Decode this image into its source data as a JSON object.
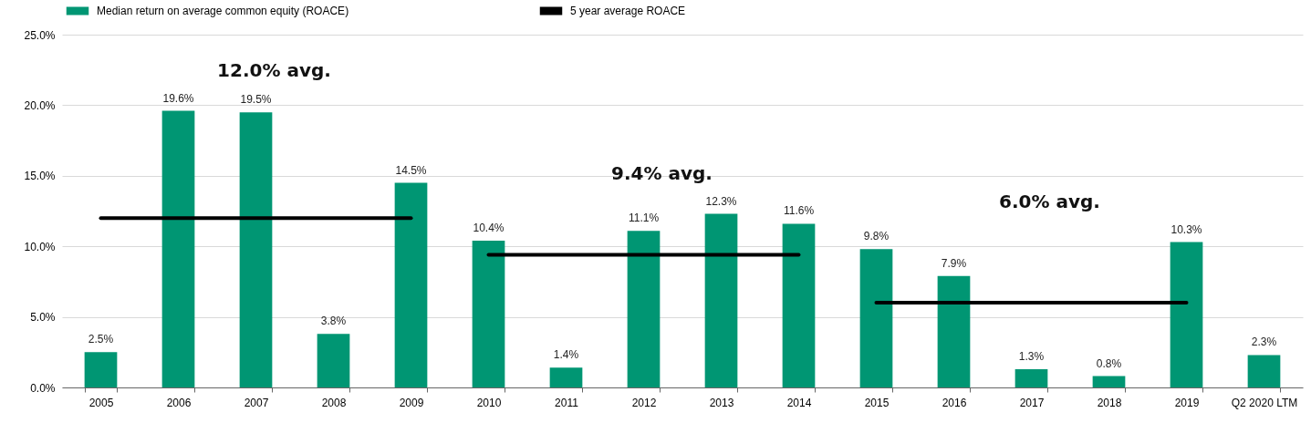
{
  "chart_data": {
    "type": "bar",
    "categories": [
      "2005",
      "2006",
      "2007",
      "2008",
      "2009",
      "2010",
      "2011",
      "2012",
      "2013",
      "2014",
      "2015",
      "2016",
      "2017",
      "2018",
      "2019",
      "Q2 2020 LTM"
    ],
    "series": [
      {
        "name": "Median return on average common equity (ROACE)",
        "color": "#009673",
        "values": [
          2.5,
          19.6,
          19.5,
          3.8,
          14.5,
          10.4,
          1.4,
          11.1,
          12.3,
          11.6,
          9.8,
          7.9,
          1.3,
          0.8,
          10.3,
          2.3
        ],
        "value_labels": [
          "2.5%",
          "19.6%",
          "19.5%",
          "3.8%",
          "14.5%",
          "10.4%",
          "1.4%",
          "11.1%",
          "12.3%",
          "11.6%",
          "9.8%",
          "7.9%",
          "1.3%",
          "0.8%",
          "10.3%",
          "2.3%"
        ]
      },
      {
        "name": "5 year average ROACE",
        "type": "line",
        "color": "#000000",
        "values": [
          12.0,
          12.0,
          12.0,
          12.0,
          12.0,
          null,
          null,
          null,
          null,
          null,
          null,
          null,
          null,
          null,
          null,
          null
        ]
      },
      {
        "type": "line",
        "color": "#000000",
        "values": [
          null,
          null,
          null,
          null,
          null,
          9.4,
          9.4,
          9.4,
          9.4,
          9.4,
          null,
          null,
          null,
          null,
          null,
          null
        ]
      },
      {
        "type": "line",
        "color": "#000000",
        "values": [
          null,
          null,
          null,
          null,
          null,
          null,
          null,
          null,
          null,
          null,
          6.0,
          6.0,
          6.0,
          6.0,
          6.0,
          null
        ]
      }
    ],
    "ylim": [
      0,
      25
    ],
    "yticks": [
      {
        "value": 0,
        "label": "0.0%"
      },
      {
        "value": 5,
        "label": "5.0%"
      },
      {
        "value": 10,
        "label": "10.0%"
      },
      {
        "value": 15,
        "label": "15.0%"
      },
      {
        "value": 20,
        "label": "20.0%"
      },
      {
        "value": 25,
        "label": "25.0%"
      }
    ],
    "annotations": [
      "12.0% avg.",
      "9.4% avg.",
      "6.0% avg."
    ],
    "grid": "y",
    "legend": "top"
  }
}
